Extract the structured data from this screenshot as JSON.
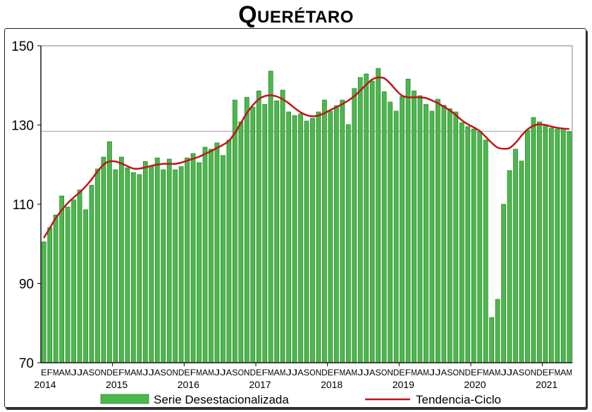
{
  "chart_data": {
    "type": "bar",
    "title": "Querétaro",
    "xlabel": "",
    "ylabel": "",
    "ylim": [
      70,
      150
    ],
    "yticks": [
      70,
      90,
      110,
      130,
      150
    ],
    "grid": false,
    "reference_line": 128.4,
    "legend_position": "bottom",
    "month_labels": [
      "E",
      "F",
      "M",
      "A",
      "M",
      "J",
      "J",
      "A",
      "S",
      "O",
      "N",
      "D"
    ],
    "years": [
      "2014",
      "2015",
      "2016",
      "2017",
      "2018",
      "2019",
      "2020",
      "2021"
    ],
    "months_last_year": 5,
    "series": [
      {
        "name": "Serie Desestacionalizada",
        "type": "bar",
        "color": "#4cb84c",
        "values": [
          100.5,
          104.1,
          107.3,
          112.1,
          109.3,
          111.1,
          113.6,
          108.6,
          114.8,
          118.9,
          121.9,
          125.8,
          118.7,
          121.9,
          119.2,
          118.0,
          117.5,
          120.8,
          119.5,
          121.7,
          118.7,
          121.4,
          118.7,
          119.5,
          121.7,
          122.8,
          120.5,
          124.4,
          123.9,
          125.5,
          122.3,
          126.2,
          136.3,
          130.8,
          137.0,
          134.5,
          138.6,
          135.2,
          143.6,
          136.1,
          138.8,
          133.3,
          132.4,
          132.8,
          131.0,
          131.7,
          133.3,
          136.3,
          133.5,
          134.9,
          136.3,
          130.1,
          139.2,
          142.0,
          142.9,
          141.1,
          144.3,
          138.4,
          135.8,
          133.5,
          137.2,
          141.6,
          138.6,
          137.4,
          135.2,
          133.5,
          136.5,
          135.0,
          134.1,
          133.3,
          130.6,
          129.6,
          129.0,
          128.3,
          126.2,
          81.4,
          86.0,
          110.0,
          118.5,
          123.9,
          120.9,
          128.7,
          131.9,
          130.8,
          130.1,
          129.2,
          129.0,
          129.0,
          128.3
        ]
      },
      {
        "name": "Tendencia-Ciclo",
        "type": "line",
        "color": "#c0151b",
        "values": [
          101.5,
          104,
          106.5,
          108.5,
          110.3,
          111.7,
          113,
          114.5,
          116.3,
          118.3,
          120,
          120.8,
          120.8,
          120.3,
          119.6,
          119,
          119,
          119.3,
          119.7,
          120,
          120.2,
          120.2,
          120.2,
          120.5,
          121,
          121.5,
          122,
          122.7,
          123.4,
          124.2,
          125,
          126,
          128,
          130.5,
          133,
          135,
          136.5,
          137.3,
          137.5,
          137.2,
          136.5,
          135.5,
          134.3,
          133.2,
          132.5,
          132.2,
          132.4,
          133,
          133.8,
          134.5,
          135.3,
          136.2,
          137.3,
          138.7,
          140.2,
          141.5,
          142,
          141.8,
          140.5,
          138.8,
          137.4,
          137,
          137,
          137,
          136.8,
          136.2,
          135.5,
          134.6,
          133.7,
          132.5,
          131.2,
          130.2,
          129.4,
          128.5,
          127,
          125.5,
          124.3,
          124,
          124.2,
          125.5,
          127.3,
          128.9,
          129.8,
          130.2,
          130,
          129.6,
          129.3,
          129.1,
          129
        ]
      }
    ]
  }
}
